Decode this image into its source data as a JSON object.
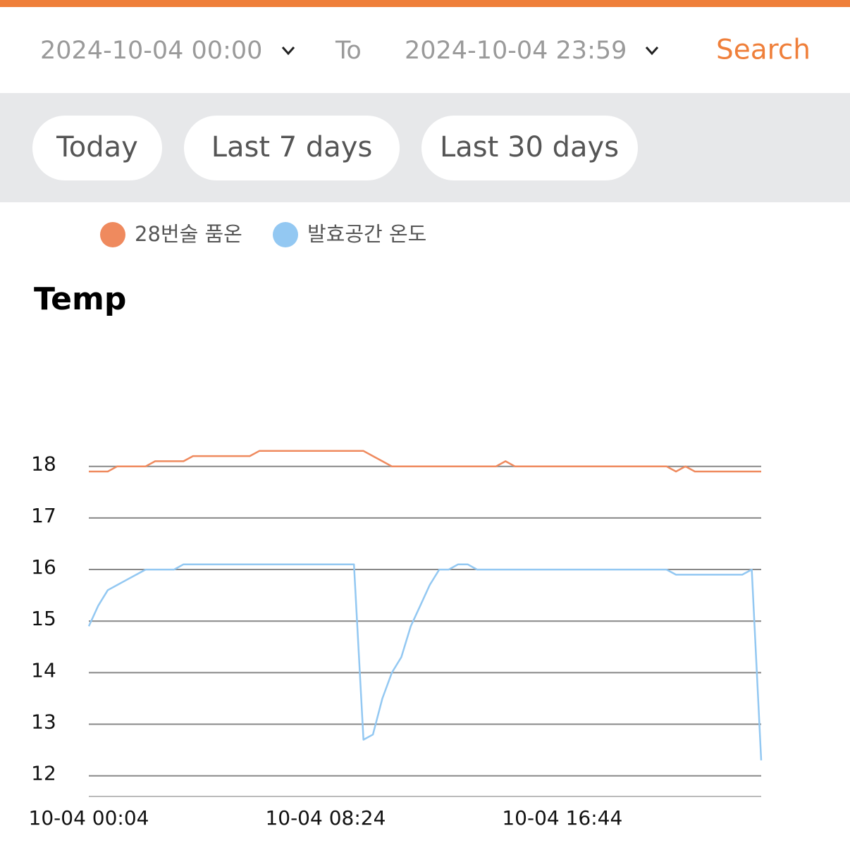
{
  "header": {
    "start": "2024-10-04 00:00",
    "to": "To",
    "end": "2024-10-04 23:59",
    "search": "Search"
  },
  "quick_ranges": [
    "Today",
    "Last 7 days",
    "Last 30 days"
  ],
  "chart_data": {
    "type": "line",
    "title": "Temp",
    "x": [
      "10-04 00:04",
      "10-04 00:24",
      "10-04 00:44",
      "10-04 01:04",
      "10-04 01:24",
      "10-04 01:44",
      "10-04 02:04",
      "10-04 02:24",
      "10-04 02:44",
      "10-04 03:04",
      "10-04 03:24",
      "10-04 03:44",
      "10-04 04:04",
      "10-04 04:24",
      "10-04 04:44",
      "10-04 05:04",
      "10-04 05:24",
      "10-04 05:44",
      "10-04 06:04",
      "10-04 06:24",
      "10-04 06:44",
      "10-04 07:04",
      "10-04 07:24",
      "10-04 07:44",
      "10-04 08:04",
      "10-04 08:24",
      "10-04 08:44",
      "10-04 09:04",
      "10-04 09:24",
      "10-04 09:44",
      "10-04 10:04",
      "10-04 10:24",
      "10-04 10:44",
      "10-04 11:04",
      "10-04 11:24",
      "10-04 11:44",
      "10-04 12:04",
      "10-04 12:24",
      "10-04 12:44",
      "10-04 13:04",
      "10-04 13:24",
      "10-04 13:44",
      "10-04 14:04",
      "10-04 14:24",
      "10-04 14:44",
      "10-04 15:04",
      "10-04 15:24",
      "10-04 15:44",
      "10-04 16:04",
      "10-04 16:24",
      "10-04 16:44",
      "10-04 17:04",
      "10-04 17:24",
      "10-04 17:44",
      "10-04 18:04",
      "10-04 18:24",
      "10-04 18:44",
      "10-04 19:04",
      "10-04 19:24",
      "10-04 19:44",
      "10-04 20:04",
      "10-04 20:24",
      "10-04 20:44",
      "10-04 21:04",
      "10-04 21:24",
      "10-04 21:44",
      "10-04 22:04",
      "10-04 22:24",
      "10-04 22:44",
      "10-04 23:04",
      "10-04 23:24",
      "10-04 23:44"
    ],
    "series": [
      {
        "name": "28번술 품온",
        "color": "#ef8a5e",
        "values": [
          17.9,
          17.9,
          17.9,
          18.0,
          18.0,
          18.0,
          18.0,
          18.1,
          18.1,
          18.1,
          18.1,
          18.2,
          18.2,
          18.2,
          18.2,
          18.2,
          18.2,
          18.2,
          18.3,
          18.3,
          18.3,
          18.3,
          18.3,
          18.3,
          18.3,
          18.3,
          18.3,
          18.3,
          18.3,
          18.3,
          18.2,
          18.1,
          18.0,
          18.0,
          18.0,
          18.0,
          18.0,
          18.0,
          18.0,
          18.0,
          18.0,
          18.0,
          18.0,
          18.0,
          18.1,
          18.0,
          18.0,
          18.0,
          18.0,
          18.0,
          18.0,
          18.0,
          18.0,
          18.0,
          18.0,
          18.0,
          18.0,
          18.0,
          18.0,
          18.0,
          18.0,
          18.0,
          17.9,
          18.0,
          17.9,
          17.9,
          17.9,
          17.9,
          17.9,
          17.9,
          17.9,
          17.9
        ]
      },
      {
        "name": "발효공간 온도",
        "color": "#93c8f2",
        "values": [
          14.9,
          15.3,
          15.6,
          15.7,
          15.8,
          15.9,
          16.0,
          16.0,
          16.0,
          16.0,
          16.1,
          16.1,
          16.1,
          16.1,
          16.1,
          16.1,
          16.1,
          16.1,
          16.1,
          16.1,
          16.1,
          16.1,
          16.1,
          16.1,
          16.1,
          16.1,
          16.1,
          16.1,
          16.1,
          12.7,
          12.8,
          13.5,
          14.0,
          14.3,
          14.9,
          15.3,
          15.7,
          16.0,
          16.0,
          16.1,
          16.1,
          16.0,
          16.0,
          16.0,
          16.0,
          16.0,
          16.0,
          16.0,
          16.0,
          16.0,
          16.0,
          16.0,
          16.0,
          16.0,
          16.0,
          16.0,
          16.0,
          16.0,
          16.0,
          16.0,
          16.0,
          16.0,
          15.9,
          15.9,
          15.9,
          15.9,
          15.9,
          15.9,
          15.9,
          15.9,
          16.0,
          12.3
        ]
      }
    ],
    "ylim": [
      11.6,
      18.4
    ],
    "yticks": [
      12,
      13,
      14,
      15,
      16,
      17,
      18
    ],
    "xticks": [
      "10-04 00:04",
      "10-04 08:24",
      "10-04 16:44"
    ],
    "grid": true
  }
}
